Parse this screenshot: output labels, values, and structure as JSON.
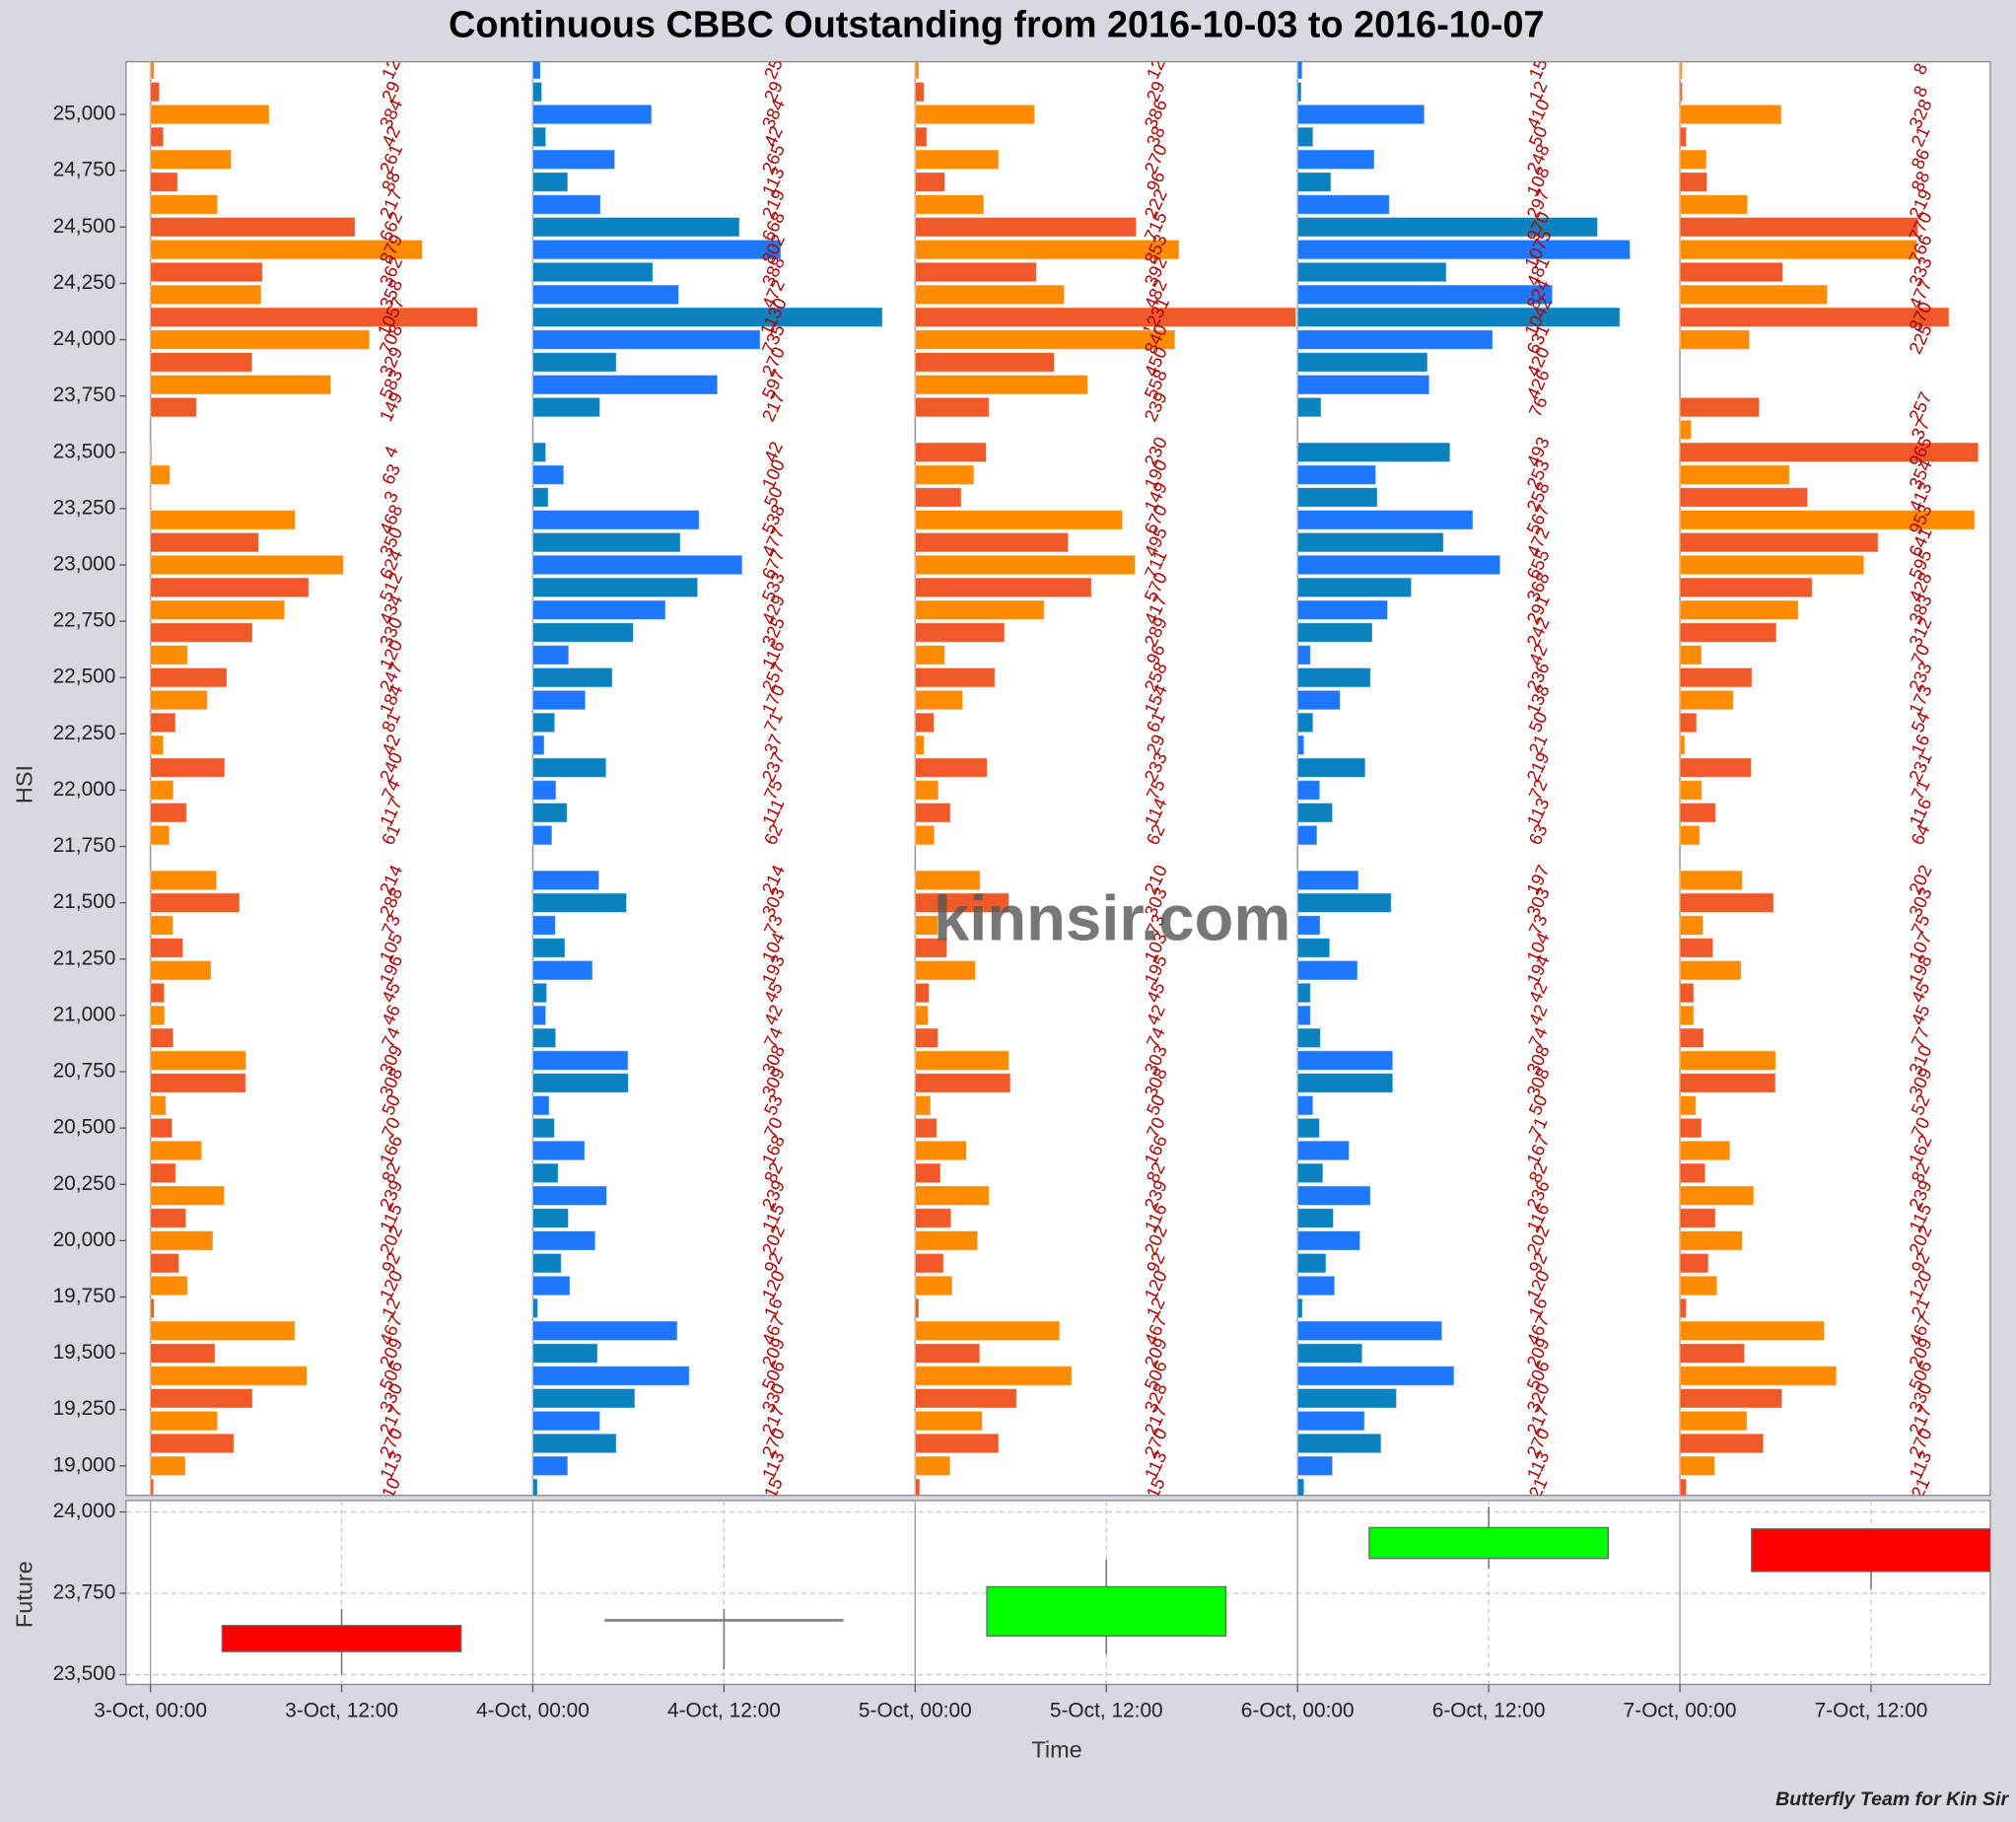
{
  "title": "Continuous CBBC Outstanding from 2016-10-03 to 2016-10-07",
  "watermark": "kinnsir.com",
  "footer": "Butterfly Team for Kin Sir",
  "chart_data": [
    {
      "type": "bar",
      "orientation": "horizontal",
      "ylabel": "HSI",
      "y": [
        25200,
        25100,
        25000,
        24900,
        24800,
        24700,
        24600,
        24500,
        24400,
        24300,
        24200,
        24100,
        24000,
        23900,
        23800,
        23700,
        23600,
        23500,
        23400,
        23300,
        23200,
        23100,
        23000,
        22900,
        22800,
        22700,
        22600,
        22500,
        22400,
        22300,
        22200,
        22100,
        22000,
        21900,
        21800,
        21700,
        21600,
        21500,
        21400,
        21300,
        21200,
        21100,
        21000,
        20900,
        20800,
        20700,
        20600,
        20500,
        20400,
        20300,
        20200,
        20100,
        20000,
        19900,
        19800,
        19700,
        19600,
        19500,
        19400,
        19300,
        19200,
        19100,
        19000,
        18900
      ],
      "ylim": [
        18869,
        25234
      ],
      "yticks": [
        {
          "value": 19000,
          "label": "19,000"
        },
        {
          "value": 19250,
          "label": "19,250"
        },
        {
          "value": 19500,
          "label": "19,500"
        },
        {
          "value": 19750,
          "label": "19,750"
        },
        {
          "value": 20000,
          "label": "20,000"
        },
        {
          "value": 20250,
          "label": "20,250"
        },
        {
          "value": 20500,
          "label": "20,500"
        },
        {
          "value": 20750,
          "label": "20,750"
        },
        {
          "value": 21000,
          "label": "21,000"
        },
        {
          "value": 21250,
          "label": "21,250"
        },
        {
          "value": 21500,
          "label": "21,500"
        },
        {
          "value": 21750,
          "label": "21,750"
        },
        {
          "value": 22000,
          "label": "22,000"
        },
        {
          "value": 22250,
          "label": "22,250"
        },
        {
          "value": 22500,
          "label": "22,500"
        },
        {
          "value": 22750,
          "label": "22,750"
        },
        {
          "value": 23000,
          "label": "23,000"
        },
        {
          "value": 23250,
          "label": "23,250"
        },
        {
          "value": 23500,
          "label": "23,500"
        },
        {
          "value": 23750,
          "label": "23,750"
        },
        {
          "value": 24000,
          "label": "24,000"
        },
        {
          "value": 24250,
          "label": "24,250"
        },
        {
          "value": 24500,
          "label": "24,500"
        },
        {
          "value": 24750,
          "label": "24,750"
        },
        {
          "value": 25000,
          "label": "25,000"
        }
      ],
      "xlim": [
        0,
        1236
      ],
      "label_color": "#b00000",
      "series": [
        {
          "color": "#ff8c00",
          "alt_color": "#f05a28",
          "values": [
            12,
            29,
            384,
            42,
            261,
            88,
            217,
            662,
            879,
            362,
            358,
            1057,
            708,
            329,
            583,
            149,
            0,
            4,
            63,
            3,
            468,
            350,
            624,
            512,
            434,
            330,
            120,
            247,
            184,
            81,
            42,
            240,
            74,
            117,
            61,
            0,
            214,
            288,
            73,
            105,
            196,
            45,
            46,
            74,
            309,
            308,
            50,
            70,
            166,
            82,
            239,
            115,
            202,
            92,
            120,
            12,
            467,
            209,
            506,
            330,
            217,
            270,
            113,
            10
          ]
        },
        {
          "color": "#1e78ff",
          "alt_color": "#0a82c0",
          "values": [
            25,
            29,
            384,
            42,
            265,
            113,
            219,
            668,
            802,
            388,
            472,
            1130,
            735,
            270,
            597,
            217,
            0,
            42,
            100,
            50,
            538,
            477,
            677,
            533,
            429,
            325,
            116,
            257,
            170,
            71,
            37,
            237,
            75,
            111,
            62,
            0,
            214,
            303,
            73,
            104,
            193,
            45,
            42,
            74,
            308,
            309,
            53,
            70,
            168,
            82,
            239,
            115,
            202,
            92,
            120,
            16,
            467,
            209,
            506,
            330,
            217,
            270,
            113,
            15
          ]
        },
        {
          "color": "#ff8c00",
          "alt_color": "#f05a28",
          "values": [
            12,
            29,
            386,
            38,
            270,
            96,
            222,
            715,
            853,
            392,
            482,
            1231,
            840,
            450,
            558,
            239,
            0,
            230,
            190,
            149,
            670,
            495,
            711,
            570,
            417,
            289,
            96,
            258,
            154,
            61,
            29,
            233,
            75,
            114,
            62,
            0,
            210,
            303,
            73,
            103,
            195,
            45,
            42,
            74,
            303,
            308,
            50,
            70,
            166,
            82,
            239,
            116,
            202,
            92,
            120,
            12,
            467,
            209,
            506,
            328,
            217,
            270,
            113,
            15
          ]
        },
        {
          "color": "#1e78ff",
          "alt_color": "#0a82c0",
          "values": [
            15,
            12,
            410,
            50,
            248,
            108,
            297,
            970,
            1075,
            481,
            824,
            1042,
            631,
            420,
            426,
            76,
            0,
            493,
            253,
            258,
            567,
            472,
            655,
            368,
            291,
            242,
            42,
            236,
            138,
            50,
            21,
            219,
            72,
            113,
            63,
            0,
            197,
            303,
            73,
            104,
            194,
            42,
            42,
            74,
            308,
            308,
            50,
            71,
            167,
            82,
            236,
            116,
            202,
            92,
            120,
            16,
            467,
            209,
            506,
            320,
            217,
            270,
            113,
            21
          ]
        },
        {
          "color": "#ff8c00",
          "alt_color": "#f05a28",
          "values": [
            8,
            8,
            328,
            21,
            86,
            88,
            219,
            770,
            766,
            333,
            477,
            870,
            225,
            0,
            0,
            257,
            37,
            965,
            354,
            413,
            953,
            641,
            595,
            428,
            383,
            312,
            70,
            233,
            173,
            54,
            16,
            231,
            71,
            116,
            64,
            0,
            202,
            303,
            75,
            107,
            198,
            45,
            45,
            77,
            310,
            309,
            52,
            70,
            162,
            82,
            239,
            115,
            202,
            92,
            120,
            21,
            467,
            209,
            506,
            330,
            217,
            270,
            113,
            21
          ]
        }
      ]
    },
    {
      "type": "candlestick",
      "ylabel": "Future",
      "xlabel": "Time",
      "x": [
        "3-Oct, 12:00",
        "4-Oct, 12:00",
        "5-Oct, 12:00",
        "6-Oct, 12:00",
        "7-Oct, 12:00"
      ],
      "open": [
        23651,
        23667,
        23619,
        23857,
        23948
      ],
      "high": [
        23702,
        23702,
        23853,
        24016,
        23950
      ],
      "low": [
        23500,
        23516,
        23563,
        23825,
        23762
      ],
      "close": [
        23571,
        23667,
        23770,
        23952,
        23817
      ],
      "up_color": "#00ff00",
      "down_color": "#ff0000",
      "flat_color": "#808080",
      "ylim": [
        23470,
        24035
      ],
      "yticks": [
        {
          "value": 23500,
          "label": "23,500"
        },
        {
          "value": 23750,
          "label": "23,750"
        },
        {
          "value": 24000,
          "label": "24,000"
        }
      ],
      "xticks": [
        "3-Oct, 00:00",
        "3-Oct, 12:00",
        "4-Oct, 00:00",
        "4-Oct, 12:00",
        "5-Oct, 00:00",
        "5-Oct, 12:00",
        "6-Oct, 00:00",
        "6-Oct, 12:00",
        "7-Oct, 00:00",
        "7-Oct, 12:00"
      ],
      "grid": true
    }
  ]
}
